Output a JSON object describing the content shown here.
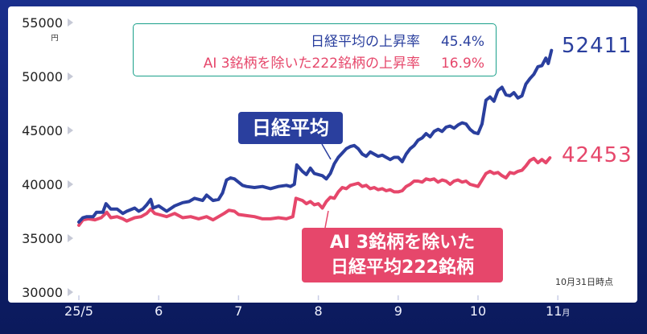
{
  "chart_data": {
    "type": "line",
    "x_ticks": [
      "25/5",
      "6",
      "7",
      "8",
      "9",
      "10",
      "11"
    ],
    "x_tick_suffix_last": "月",
    "y_ticks": [
      30000,
      35000,
      40000,
      45000,
      50000,
      55000
    ],
    "y_unit": "円",
    "ylim": [
      30000,
      55000
    ],
    "grid": false,
    "series": [
      {
        "name": "日経平均",
        "color": "#2a3f9e",
        "end_value": "52411",
        "points": [
          [
            0,
            36500
          ],
          [
            0.05,
            36900
          ],
          [
            0.1,
            37000
          ],
          [
            0.18,
            37000
          ],
          [
            0.22,
            37400
          ],
          [
            0.3,
            37400
          ],
          [
            0.34,
            38200
          ],
          [
            0.4,
            37700
          ],
          [
            0.48,
            37700
          ],
          [
            0.55,
            37300
          ],
          [
            0.6,
            37500
          ],
          [
            0.7,
            37800
          ],
          [
            0.75,
            37500
          ],
          [
            0.8,
            37700
          ],
          [
            0.85,
            38100
          ],
          [
            0.9,
            38600
          ],
          [
            0.93,
            37800
          ],
          [
            1.0,
            38000
          ],
          [
            1.1,
            37500
          ],
          [
            1.2,
            38000
          ],
          [
            1.3,
            38300
          ],
          [
            1.38,
            38400
          ],
          [
            1.45,
            38700
          ],
          [
            1.55,
            38500
          ],
          [
            1.6,
            39000
          ],
          [
            1.68,
            38500
          ],
          [
            1.75,
            38600
          ],
          [
            1.8,
            39200
          ],
          [
            1.85,
            40400
          ],
          [
            1.9,
            40600
          ],
          [
            1.95,
            40500
          ],
          [
            2.0,
            40200
          ],
          [
            2.05,
            39900
          ],
          [
            2.1,
            39800
          ],
          [
            2.2,
            39700
          ],
          [
            2.3,
            39800
          ],
          [
            2.4,
            39600
          ],
          [
            2.5,
            39800
          ],
          [
            2.6,
            39900
          ],
          [
            2.65,
            39800
          ],
          [
            2.7,
            40000
          ],
          [
            2.73,
            41800
          ],
          [
            2.8,
            41200
          ],
          [
            2.85,
            40900
          ],
          [
            2.9,
            41500
          ],
          [
            2.95,
            41000
          ],
          [
            3.0,
            40900
          ],
          [
            3.05,
            40800
          ],
          [
            3.1,
            40500
          ],
          [
            3.15,
            41000
          ],
          [
            3.2,
            41900
          ],
          [
            3.25,
            42500
          ],
          [
            3.3,
            42900
          ],
          [
            3.35,
            43300
          ],
          [
            3.4,
            43500
          ],
          [
            3.45,
            43600
          ],
          [
            3.5,
            43300
          ],
          [
            3.55,
            42800
          ],
          [
            3.6,
            42600
          ],
          [
            3.65,
            43000
          ],
          [
            3.7,
            42800
          ],
          [
            3.75,
            42600
          ],
          [
            3.8,
            42700
          ],
          [
            3.85,
            42500
          ],
          [
            3.9,
            42300
          ],
          [
            3.95,
            42500
          ],
          [
            4.0,
            42500
          ],
          [
            4.05,
            42100
          ],
          [
            4.1,
            42800
          ],
          [
            4.15,
            43300
          ],
          [
            4.2,
            43600
          ],
          [
            4.25,
            44100
          ],
          [
            4.3,
            44300
          ],
          [
            4.35,
            44700
          ],
          [
            4.4,
            44400
          ],
          [
            4.45,
            44900
          ],
          [
            4.5,
            45100
          ],
          [
            4.55,
            44900
          ],
          [
            4.6,
            45300
          ],
          [
            4.65,
            45400
          ],
          [
            4.7,
            45200
          ],
          [
            4.75,
            45500
          ],
          [
            4.8,
            45700
          ],
          [
            4.85,
            45600
          ],
          [
            4.9,
            45100
          ],
          [
            4.95,
            44800
          ],
          [
            5.0,
            44700
          ],
          [
            5.05,
            45600
          ],
          [
            5.1,
            47800
          ],
          [
            5.15,
            48100
          ],
          [
            5.2,
            47700
          ],
          [
            5.25,
            48700
          ],
          [
            5.3,
            49000
          ],
          [
            5.35,
            48300
          ],
          [
            5.4,
            48200
          ],
          [
            5.45,
            48500
          ],
          [
            5.5,
            48000
          ],
          [
            5.55,
            48200
          ],
          [
            5.6,
            49300
          ],
          [
            5.65,
            49800
          ],
          [
            5.7,
            50200
          ],
          [
            5.75,
            50900
          ],
          [
            5.8,
            51000
          ],
          [
            5.85,
            51700
          ],
          [
            5.88,
            51200
          ],
          [
            5.92,
            52411
          ]
        ]
      },
      {
        "name": "AI 3銘柄を除いた日経平均222銘柄",
        "color": "#e6476b",
        "end_value": "42453",
        "points": [
          [
            0,
            36200
          ],
          [
            0.05,
            36700
          ],
          [
            0.12,
            36800
          ],
          [
            0.2,
            36700
          ],
          [
            0.28,
            36900
          ],
          [
            0.35,
            37400
          ],
          [
            0.4,
            36900
          ],
          [
            0.48,
            37000
          ],
          [
            0.55,
            36800
          ],
          [
            0.6,
            36600
          ],
          [
            0.7,
            36900
          ],
          [
            0.78,
            37000
          ],
          [
            0.85,
            37300
          ],
          [
            0.9,
            37700
          ],
          [
            0.95,
            37300
          ],
          [
            1.0,
            37200
          ],
          [
            1.1,
            37000
          ],
          [
            1.2,
            37300
          ],
          [
            1.3,
            36900
          ],
          [
            1.4,
            37000
          ],
          [
            1.5,
            36800
          ],
          [
            1.6,
            37000
          ],
          [
            1.68,
            36700
          ],
          [
            1.75,
            37000
          ],
          [
            1.82,
            37300
          ],
          [
            1.88,
            37600
          ],
          [
            1.95,
            37500
          ],
          [
            2.0,
            37200
          ],
          [
            2.1,
            37100
          ],
          [
            2.2,
            37000
          ],
          [
            2.3,
            36800
          ],
          [
            2.4,
            36800
          ],
          [
            2.5,
            36900
          ],
          [
            2.6,
            36800
          ],
          [
            2.68,
            37000
          ],
          [
            2.72,
            38700
          ],
          [
            2.8,
            38500
          ],
          [
            2.85,
            38200
          ],
          [
            2.9,
            38400
          ],
          [
            2.95,
            38100
          ],
          [
            3.0,
            38200
          ],
          [
            3.05,
            37800
          ],
          [
            3.1,
            38400
          ],
          [
            3.15,
            38800
          ],
          [
            3.2,
            38700
          ],
          [
            3.25,
            39300
          ],
          [
            3.3,
            39700
          ],
          [
            3.35,
            39600
          ],
          [
            3.4,
            39900
          ],
          [
            3.45,
            40000
          ],
          [
            3.5,
            40100
          ],
          [
            3.55,
            39800
          ],
          [
            3.6,
            39900
          ],
          [
            3.65,
            39600
          ],
          [
            3.7,
            39700
          ],
          [
            3.75,
            39500
          ],
          [
            3.8,
            39600
          ],
          [
            3.85,
            39400
          ],
          [
            3.9,
            39500
          ],
          [
            3.95,
            39300
          ],
          [
            4.0,
            39300
          ],
          [
            4.05,
            39400
          ],
          [
            4.1,
            39800
          ],
          [
            4.15,
            40000
          ],
          [
            4.2,
            40300
          ],
          [
            4.25,
            40300
          ],
          [
            4.3,
            40200
          ],
          [
            4.35,
            40500
          ],
          [
            4.4,
            40400
          ],
          [
            4.45,
            40500
          ],
          [
            4.5,
            40200
          ],
          [
            4.55,
            40400
          ],
          [
            4.6,
            40300
          ],
          [
            4.65,
            40000
          ],
          [
            4.7,
            40300
          ],
          [
            4.75,
            40400
          ],
          [
            4.8,
            40200
          ],
          [
            4.85,
            40300
          ],
          [
            4.9,
            40000
          ],
          [
            4.95,
            39900
          ],
          [
            5.0,
            39800
          ],
          [
            5.05,
            40400
          ],
          [
            5.1,
            41000
          ],
          [
            5.15,
            41200
          ],
          [
            5.2,
            41000
          ],
          [
            5.25,
            41100
          ],
          [
            5.3,
            40800
          ],
          [
            5.35,
            40600
          ],
          [
            5.4,
            41100
          ],
          [
            5.45,
            41000
          ],
          [
            5.5,
            41200
          ],
          [
            5.55,
            41300
          ],
          [
            5.6,
            41700
          ],
          [
            5.65,
            42200
          ],
          [
            5.7,
            42400
          ],
          [
            5.75,
            42000
          ],
          [
            5.8,
            42300
          ],
          [
            5.85,
            42000
          ],
          [
            5.9,
            42453
          ]
        ]
      }
    ]
  },
  "legend": {
    "row1_label": "日経平均の上昇率",
    "row1_value": "45.4%",
    "row2_label": "AI 3銘柄を除いた222銘柄の上昇率",
    "row2_value": "16.9%"
  },
  "callouts": {
    "nikkei": "日経平均",
    "ex_ai_line1": "AI 3銘柄を除いた",
    "ex_ai_line2": "日経平均222銘柄"
  },
  "note": "10月31日時点",
  "colors": {
    "blue": "#2a3f9e",
    "pink": "#e6476b",
    "background": "#102273",
    "legend_border": "#1aa08a"
  }
}
